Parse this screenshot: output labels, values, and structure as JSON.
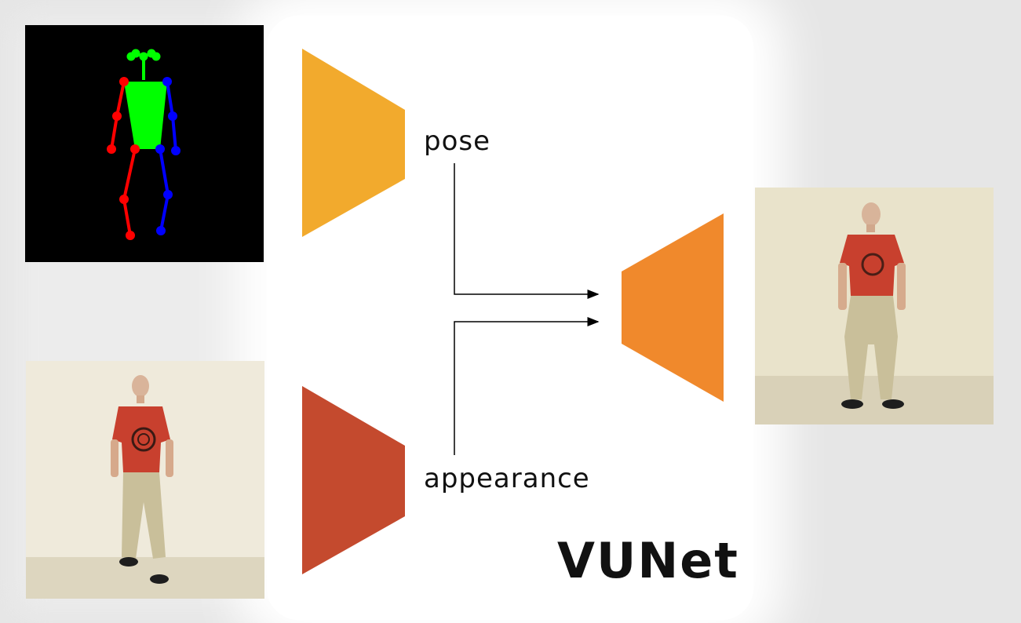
{
  "labels": {
    "pose": "pose",
    "appearance": "appearance",
    "model": "VUNet"
  },
  "colors": {
    "pose_encoder": "#f2aa2d",
    "appearance_encoder": "#c44a2e",
    "decoder": "#f0892c",
    "skeleton_torso": "#00ff00",
    "skeleton_left": "#ff0000",
    "skeleton_right": "#0000ff",
    "shirt": "#c8402e",
    "pants": "#c9bf9a"
  }
}
